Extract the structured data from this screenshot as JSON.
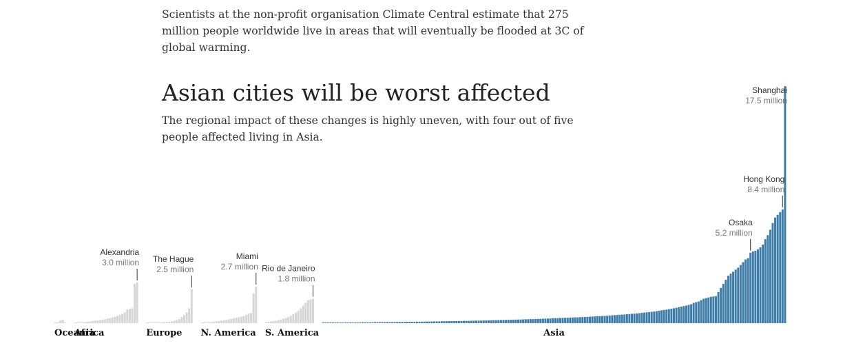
{
  "article": {
    "intro": "Scientists at the non-profit organisation Climate Central estimate that 275 million people worldwide live in areas that will eventually be flooded at 3C of global warming."
  },
  "colors": {
    "highlight": "#3d7da8",
    "muted": "#d6d6d6",
    "leader": "#333333"
  },
  "chart_data": {
    "type": "bar",
    "title": "Asian cities will be worst affected",
    "subtitle": "The regional impact of these changes is highly uneven, with four out of five people affected living in Asia.",
    "unit": "million people",
    "ylim": [
      0,
      17.5
    ],
    "regions": [
      {
        "name": "Oceania",
        "highlight": false,
        "values": [
          0.05,
          0.08,
          0.2,
          0.25,
          0.06
        ]
      },
      {
        "name": "Africa",
        "highlight": false,
        "values": [
          0.04,
          0.05,
          0.06,
          0.07,
          0.09,
          0.11,
          0.13,
          0.15,
          0.18,
          0.2,
          0.23,
          0.26,
          0.29,
          0.33,
          0.37,
          0.42,
          0.47,
          0.53,
          0.6,
          0.68,
          0.8,
          1.0,
          1.05,
          1.1,
          2.9,
          3.0
        ]
      },
      {
        "name": "Europe",
        "highlight": false,
        "values": [
          0.02,
          0.03,
          0.03,
          0.04,
          0.05,
          0.06,
          0.07,
          0.08,
          0.1,
          0.12,
          0.14,
          0.18,
          0.23,
          0.3,
          0.45,
          0.6,
          0.8,
          1.1,
          2.5
        ]
      },
      {
        "name": "N. America",
        "highlight": false,
        "values": [
          0.03,
          0.04,
          0.05,
          0.07,
          0.09,
          0.11,
          0.13,
          0.16,
          0.19,
          0.22,
          0.25,
          0.28,
          0.32,
          0.36,
          0.4,
          0.44,
          0.48,
          0.52,
          0.6,
          0.7,
          0.75,
          2.2,
          2.7
        ]
      },
      {
        "name": "S. America",
        "highlight": false,
        "values": [
          0.08,
          0.1,
          0.12,
          0.15,
          0.18,
          0.22,
          0.27,
          0.32,
          0.38,
          0.45,
          0.55,
          0.65,
          0.78,
          0.9,
          1.1,
          1.3,
          1.5,
          1.7,
          1.75,
          1.8
        ]
      },
      {
        "name": "Asia",
        "highlight": true,
        "values": [
          0.03,
          0.03,
          0.03,
          0.03,
          0.03,
          0.04,
          0.04,
          0.04,
          0.04,
          0.04,
          0.04,
          0.05,
          0.05,
          0.05,
          0.05,
          0.05,
          0.06,
          0.06,
          0.06,
          0.06,
          0.06,
          0.07,
          0.07,
          0.07,
          0.07,
          0.07,
          0.08,
          0.08,
          0.08,
          0.08,
          0.09,
          0.09,
          0.09,
          0.09,
          0.1,
          0.1,
          0.1,
          0.1,
          0.11,
          0.11,
          0.11,
          0.12,
          0.12,
          0.12,
          0.12,
          0.13,
          0.13,
          0.13,
          0.14,
          0.14,
          0.14,
          0.15,
          0.15,
          0.15,
          0.16,
          0.16,
          0.16,
          0.17,
          0.17,
          0.17,
          0.18,
          0.18,
          0.19,
          0.19,
          0.19,
          0.2,
          0.2,
          0.21,
          0.21,
          0.22,
          0.22,
          0.23,
          0.23,
          0.24,
          0.24,
          0.25,
          0.25,
          0.26,
          0.26,
          0.27,
          0.27,
          0.28,
          0.29,
          0.29,
          0.3,
          0.3,
          0.31,
          0.32,
          0.32,
          0.33,
          0.34,
          0.34,
          0.35,
          0.36,
          0.36,
          0.37,
          0.38,
          0.39,
          0.39,
          0.4,
          0.41,
          0.42,
          0.43,
          0.43,
          0.44,
          0.45,
          0.46,
          0.47,
          0.48,
          0.49,
          0.5,
          0.51,
          0.52,
          0.53,
          0.54,
          0.55,
          0.57,
          0.58,
          0.59,
          0.6,
          0.62,
          0.63,
          0.64,
          0.66,
          0.67,
          0.69,
          0.7,
          0.72,
          0.74,
          0.76,
          0.78,
          0.8,
          0.82,
          0.84,
          0.86,
          0.89,
          0.92,
          0.95,
          0.98,
          1.0,
          1.04,
          1.07,
          1.1,
          1.14,
          1.18,
          1.22,
          1.26,
          1.3,
          1.35,
          1.4,
          1.5,
          1.55,
          1.6,
          1.7,
          1.8,
          1.85,
          1.9,
          1.95,
          1.97,
          2.0,
          2.3,
          2.6,
          2.9,
          3.2,
          3.5,
          3.65,
          3.8,
          3.95,
          4.1,
          4.3,
          4.5,
          4.7,
          4.8,
          5.2,
          5.3,
          5.35,
          5.45,
          5.6,
          5.8,
          6.2,
          6.5,
          6.9,
          7.4,
          7.8,
          8.0,
          8.2,
          8.4,
          17.5
        ]
      }
    ],
    "annotations": [
      {
        "label": "Alexandria",
        "value_label": "3.0 million",
        "region": "Africa",
        "value": 3.0
      },
      {
        "label": "The Hague",
        "value_label": "2.5 million",
        "region": "Europe",
        "value": 2.5
      },
      {
        "label": "Miami",
        "value_label": "2.7 million",
        "region": "N. America",
        "value": 2.7
      },
      {
        "label": "Rio de Janeiro",
        "value_label": "1.8 million",
        "region": "S. America",
        "value": 1.8
      },
      {
        "label": "Osaka",
        "value_label": "5.2 million",
        "region": "Asia",
        "value": 5.2
      },
      {
        "label": "Hong Kong",
        "value_label": "8.4 million",
        "region": "Asia",
        "value": 8.4
      },
      {
        "label": "Shanghai",
        "value_label": "17.5 million",
        "region": "Asia",
        "value": 17.5
      }
    ]
  }
}
